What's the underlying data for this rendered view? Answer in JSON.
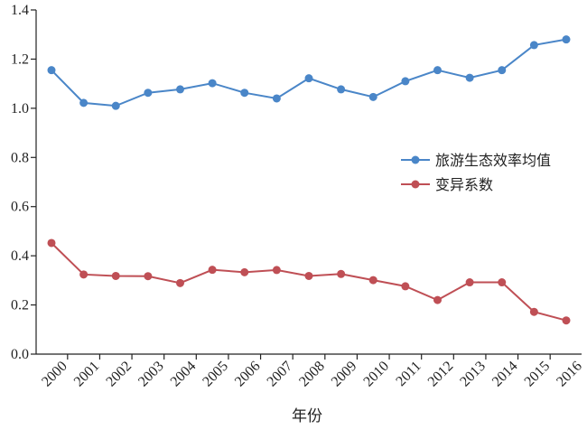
{
  "chart_data": {
    "type": "line",
    "title": "",
    "xlabel": "年份",
    "ylabel": "",
    "x": [
      "2000",
      "2001",
      "2002",
      "2003",
      "2004",
      "2005",
      "2006",
      "2007",
      "2008",
      "2009",
      "2010",
      "2011",
      "2012",
      "2013",
      "2014",
      "2015",
      "2016"
    ],
    "ylim": [
      0,
      1.4
    ],
    "yticks": [
      "0.0",
      "0.2",
      "0.4",
      "0.6",
      "0.8",
      "1.0",
      "1.2",
      "1.4"
    ],
    "legend_position": "right-middle",
    "grid": false,
    "series": [
      {
        "name": "旅游生态效率均值",
        "color": "#4a86c8",
        "values": [
          1.155,
          1.022,
          1.01,
          1.063,
          1.077,
          1.102,
          1.063,
          1.04,
          1.122,
          1.077,
          1.046,
          1.11,
          1.155,
          1.124,
          1.155,
          1.257,
          1.28
        ]
      },
      {
        "name": "变异系数",
        "color": "#bf4f55",
        "values": [
          0.452,
          0.324,
          0.318,
          0.317,
          0.289,
          0.343,
          0.333,
          0.342,
          0.318,
          0.326,
          0.301,
          0.276,
          0.22,
          0.292,
          0.292,
          0.172,
          0.137
        ]
      }
    ]
  }
}
